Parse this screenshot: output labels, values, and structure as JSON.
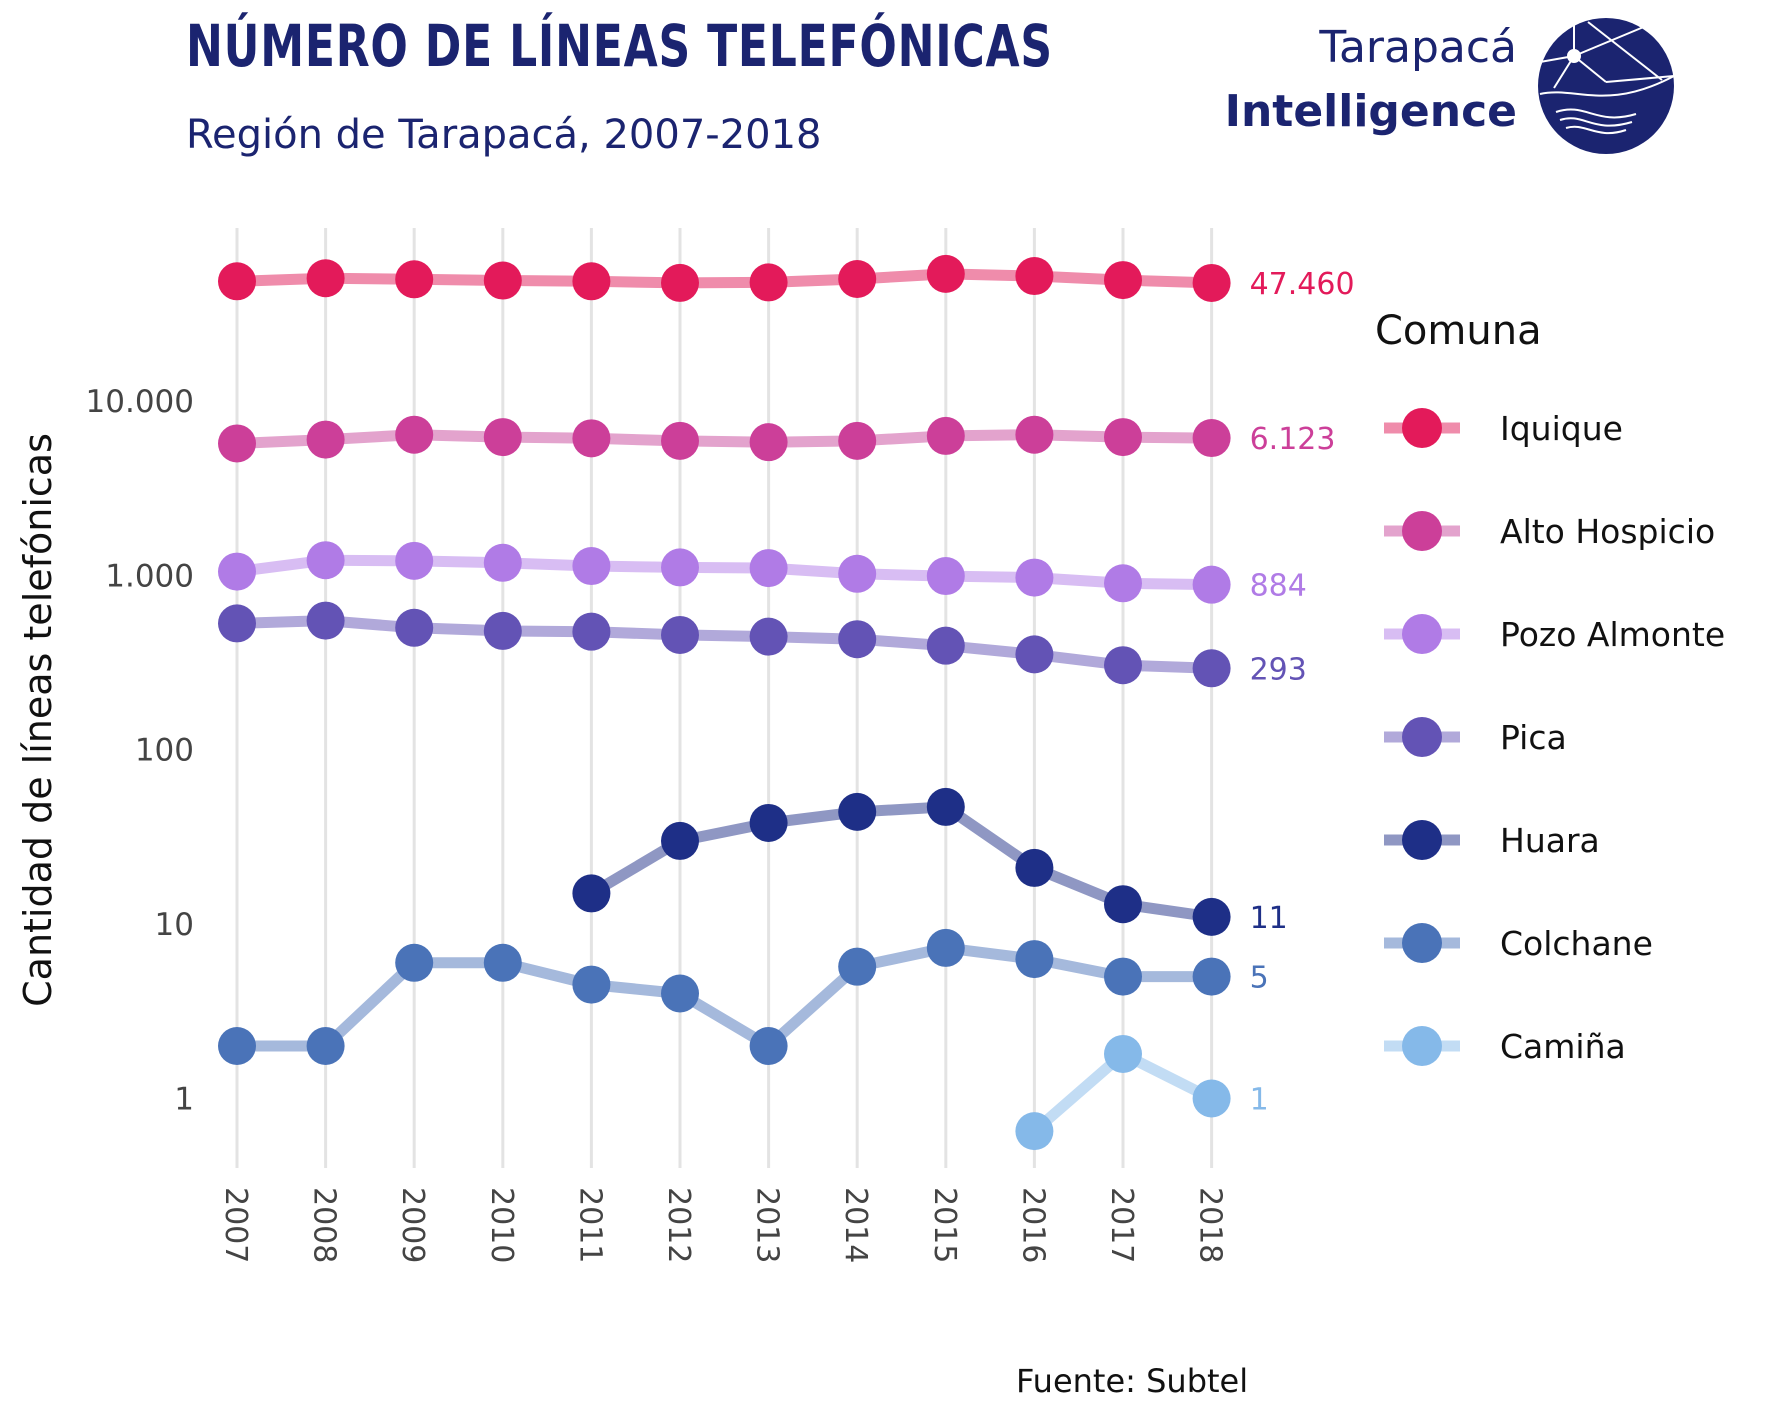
{
  "header": {
    "title": "NÚMERO DE LÍNEAS TELEFÓNICAS",
    "subtitle": "Región de Tarapacá, 2007-2018"
  },
  "logo": {
    "line1": "Tarapacá",
    "line2": "Intelligence"
  },
  "footer": {
    "source": "Fuente: Subtel"
  },
  "colors": {
    "brand": "#1b2470",
    "grid": "#e3e3e3"
  },
  "chart_data": {
    "type": "line",
    "title": "NÚMERO DE LÍNEAS TELEFÓNICAS",
    "subtitle": "Región de Tarapacá, 2007-2018",
    "xlabel": "",
    "ylabel": "Cantidad de líneas telefónicas",
    "yscale": "log",
    "ylim": [
      0.45,
      80000
    ],
    "x": [
      "2007",
      "2008",
      "2009",
      "2010",
      "2011",
      "2012",
      "2013",
      "2014",
      "2015",
      "2016",
      "2017",
      "2018"
    ],
    "y_ticks": [
      {
        "value": 1,
        "label": "1"
      },
      {
        "value": 10,
        "label": "10"
      },
      {
        "value": 100,
        "label": "100"
      },
      {
        "value": 1000,
        "label": "1.000"
      },
      {
        "value": 10000,
        "label": "10.000"
      }
    ],
    "grid": "vertical",
    "legend": {
      "title": "Comuna",
      "position": "right"
    },
    "series": [
      {
        "name": "Iquique",
        "color": "#e31a5a",
        "line_color": "#ef8cab",
        "values": [
          48500,
          50500,
          49800,
          49000,
          48500,
          47500,
          47800,
          50000,
          53500,
          52000,
          49300,
          47460
        ],
        "end_label": "47.460"
      },
      {
        "name": "Alto Hospicio",
        "color": "#cc3f99",
        "line_color": "#e3a3cd",
        "values": [
          5700,
          6000,
          6400,
          6200,
          6100,
          5900,
          5800,
          5900,
          6300,
          6400,
          6200,
          6123
        ],
        "end_label": "6.123"
      },
      {
        "name": "Pozo Almonte",
        "color": "#b07be6",
        "line_color": "#d8bdf3",
        "values": [
          1050,
          1220,
          1210,
          1180,
          1130,
          1110,
          1100,
          1020,
          990,
          970,
          900,
          884
        ],
        "end_label": "884"
      },
      {
        "name": "Pica",
        "color": "#6353b5",
        "line_color": "#b1a9da",
        "values": [
          530,
          550,
          500,
          480,
          475,
          455,
          445,
          430,
          395,
          352,
          305,
          293
        ],
        "end_label": "293"
      },
      {
        "name": "Huara",
        "color": "#1e2f87",
        "line_color": "#8f97c3",
        "values": [
          null,
          null,
          null,
          null,
          15,
          30,
          38,
          44,
          47,
          21,
          13,
          11
        ],
        "end_label": "11"
      },
      {
        "name": "Colchane",
        "color": "#4a73b8",
        "line_color": "#a5b9dc",
        "values": [
          2,
          2,
          6,
          6,
          4.5,
          4,
          2,
          5.7,
          7.3,
          6.3,
          5,
          5
        ],
        "end_label": "5"
      },
      {
        "name": "Camiña",
        "color": "#85b9e9",
        "line_color": "#c2dcf4",
        "values": [
          null,
          null,
          null,
          null,
          null,
          null,
          null,
          null,
          null,
          0.65,
          1.8,
          1
        ],
        "end_label": "1"
      }
    ]
  }
}
